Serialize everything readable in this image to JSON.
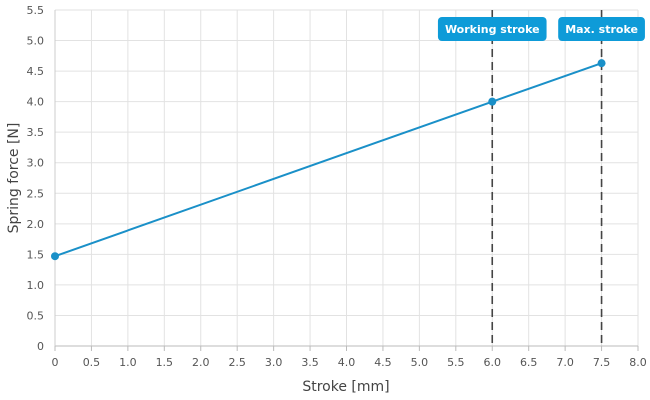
{
  "chart_data": {
    "type": "line",
    "xlabel": "Stroke [mm]",
    "ylabel": "Spring force [N]",
    "xlim": [
      0,
      8
    ],
    "ylim": [
      0,
      5.5
    ],
    "x_ticks": [
      "0",
      "0.5",
      "1.0",
      "1.5",
      "2.0",
      "2.5",
      "3.0",
      "3.5",
      "4.0",
      "4.5",
      "5.0",
      "5.5",
      "6.0",
      "6.5",
      "7.0",
      "7.5",
      "8.0"
    ],
    "y_ticks": [
      "0",
      "0.5",
      "1.0",
      "1.5",
      "2.0",
      "2.5",
      "3.0",
      "3.5",
      "4.0",
      "4.5",
      "5.0",
      "5.5"
    ],
    "grid": true,
    "series": [
      {
        "color": "#1a90c8",
        "points": [
          {
            "x": 0,
            "y": 1.47
          },
          {
            "x": 6.0,
            "y": 4.0
          },
          {
            "x": 7.5,
            "y": 4.63
          }
        ]
      }
    ],
    "markers": [
      {
        "label": "Working stroke",
        "x": 6.0
      },
      {
        "label": "Max. stroke",
        "x": 7.5
      }
    ],
    "colors": {
      "line": "#1a90c8",
      "marker_badge": "#0e9bd8",
      "marker_line": "#444444",
      "grid": "#e2e2e2"
    }
  }
}
